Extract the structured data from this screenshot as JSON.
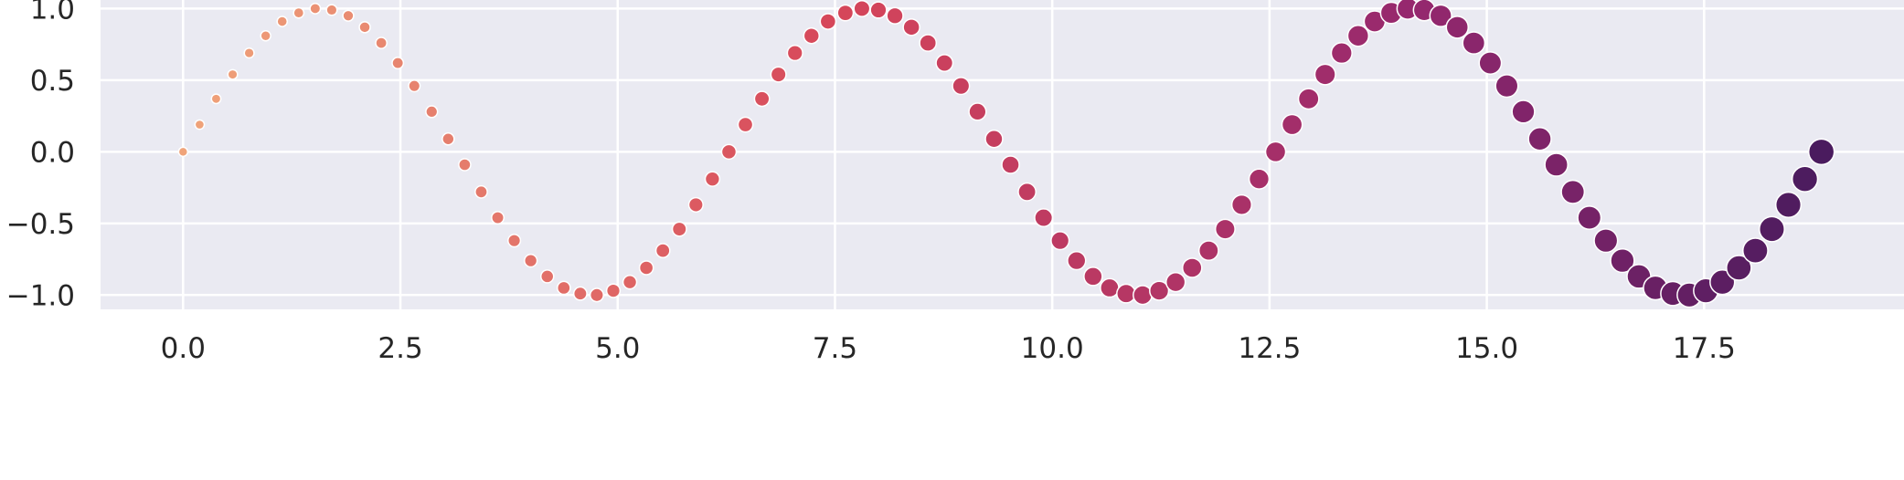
{
  "chart_data": {
    "type": "scatter",
    "title": "",
    "xlabel": "",
    "ylabel": "",
    "xlim": [
      -0.95,
      19.8
    ],
    "ylim": [
      -1.1,
      1.06
    ],
    "x_ticks": [
      0.0,
      2.5,
      5.0,
      7.5,
      10.0,
      12.5,
      15.0,
      17.5
    ],
    "x_tick_labels": [
      "0.0",
      "2.5",
      "5.0",
      "7.5",
      "10.0",
      "12.5",
      "15.0",
      "17.5"
    ],
    "y_ticks": [
      -1.0,
      -0.5,
      0.0,
      0.5,
      1.0
    ],
    "y_tick_labels": [
      "−1.0",
      "−0.5",
      "0.0",
      "0.5",
      "1.0"
    ],
    "grid": true,
    "background_color": "#eaeaf2",
    "grid_color": "#ffffff",
    "marker_edge_color": "#ffffff",
    "color_start": "#f0a47a",
    "color_end": "#4a1b5e",
    "size_start": 5,
    "size_end": 14,
    "series": [
      {
        "x": [
          0.0,
          0.19,
          0.38,
          0.57,
          0.76,
          0.95,
          1.14,
          1.33,
          1.52,
          1.71,
          1.9,
          2.09,
          2.28,
          2.47,
          2.66,
          2.86,
          3.05,
          3.24,
          3.43,
          3.62,
          3.81,
          4.0,
          4.19,
          4.38,
          4.57,
          4.76,
          4.95,
          5.14,
          5.33,
          5.52,
          5.71,
          5.9,
          6.09,
          6.28,
          6.47,
          6.66,
          6.85,
          7.04,
          7.23,
          7.42,
          7.62,
          7.81,
          8.0,
          8.19,
          8.38,
          8.57,
          8.76,
          8.95,
          9.14,
          9.33,
          9.52,
          9.71,
          9.9,
          10.09,
          10.28,
          10.47,
          10.66,
          10.85,
          11.04,
          11.23,
          11.42,
          11.61,
          11.8,
          11.99,
          12.18,
          12.38,
          12.57,
          12.76,
          12.95,
          13.14,
          13.33,
          13.52,
          13.71,
          13.9,
          14.09,
          14.28,
          14.47,
          14.66,
          14.85,
          15.04,
          15.23,
          15.42,
          15.61,
          15.8,
          15.99,
          16.18,
          16.37,
          16.56,
          16.75,
          16.94,
          17.14,
          17.33,
          17.52,
          17.71,
          17.9,
          18.09,
          18.28,
          18.47,
          18.66,
          18.85
        ],
        "y": [
          0.0,
          0.19,
          0.37,
          0.54,
          0.69,
          0.81,
          0.91,
          0.97,
          1.0,
          0.99,
          0.95,
          0.87,
          0.76,
          0.62,
          0.46,
          0.28,
          0.09,
          -0.09,
          -0.28,
          -0.46,
          -0.62,
          -0.76,
          -0.87,
          -0.95,
          -0.99,
          -1.0,
          -0.97,
          -0.91,
          -0.81,
          -0.69,
          -0.54,
          -0.37,
          -0.19,
          0.0,
          0.19,
          0.37,
          0.54,
          0.69,
          0.81,
          0.91,
          0.97,
          1.0,
          0.99,
          0.95,
          0.87,
          0.76,
          0.62,
          0.46,
          0.28,
          0.09,
          -0.09,
          -0.28,
          -0.46,
          -0.62,
          -0.76,
          -0.87,
          -0.95,
          -0.99,
          -1.0,
          -0.97,
          -0.91,
          -0.81,
          -0.69,
          -0.54,
          -0.37,
          -0.19,
          0.0,
          0.19,
          0.37,
          0.54,
          0.69,
          0.81,
          0.91,
          0.97,
          1.0,
          0.99,
          0.95,
          0.87,
          0.76,
          0.62,
          0.46,
          0.28,
          0.09,
          -0.09,
          -0.28,
          -0.46,
          -0.62,
          -0.76,
          -0.87,
          -0.95,
          -0.99,
          -1.0,
          -0.97,
          -0.91,
          -0.81,
          -0.69,
          -0.54,
          -0.37,
          -0.19,
          0.0
        ]
      }
    ]
  }
}
